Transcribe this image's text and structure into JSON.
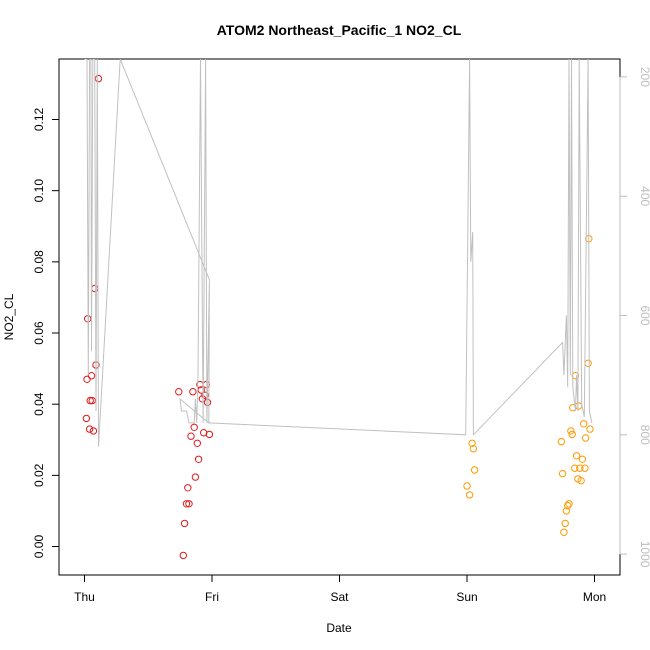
{
  "chart_data": {
    "type": "scatter",
    "title": "ATOM2 Northeast_Pacific_1 NO2_CL",
    "xlabel": "Date",
    "ylabel": "NO2_CL",
    "x_unit": "days since Thu 00:00",
    "xlim": [
      -0.2,
      4.2
    ],
    "ylim": [
      -0.008,
      0.137
    ],
    "x_ticks": [
      {
        "x": 0,
        "label": "Thu"
      },
      {
        "x": 1,
        "label": "Fri"
      },
      {
        "x": 2,
        "label": "Sat"
      },
      {
        "x": 3,
        "label": "Sun"
      },
      {
        "x": 4,
        "label": "Mon"
      }
    ],
    "y_ticks": [
      {
        "v": 0.0,
        "label": "0.00"
      },
      {
        "v": 0.02,
        "label": "0.02"
      },
      {
        "v": 0.04,
        "label": "0.04"
      },
      {
        "v": 0.06,
        "label": "0.06"
      },
      {
        "v": 0.08,
        "label": "0.08"
      },
      {
        "v": 0.1,
        "label": "0.10"
      },
      {
        "v": 0.12,
        "label": "0.12"
      }
    ],
    "right_axis": {
      "color": "#bdbdbd",
      "ylim_top_to_bottom": [
        170,
        1035
      ],
      "ticks": [
        {
          "v": 200,
          "label": "200"
        },
        {
          "v": 400,
          "label": "400"
        },
        {
          "v": 600,
          "label": "600"
        },
        {
          "v": 800,
          "label": "800"
        },
        {
          "v": 1000,
          "label": "1000"
        }
      ]
    },
    "grid": false,
    "series": [
      {
        "color": "#e31a1c",
        "points": [
          [
            0.015,
            0.036
          ],
          [
            0.02,
            0.047
          ],
          [
            0.025,
            0.064
          ],
          [
            0.04,
            0.033
          ],
          [
            0.045,
            0.041
          ],
          [
            0.055,
            0.048
          ],
          [
            0.06,
            0.041
          ],
          [
            0.07,
            0.0325
          ],
          [
            0.08,
            0.0725
          ],
          [
            0.09,
            0.051
          ],
          [
            0.11,
            0.1315
          ],
          [
            0.74,
            0.0435
          ],
          [
            0.775,
            -0.0025
          ],
          [
            0.785,
            0.0065
          ],
          [
            0.8,
            0.012
          ],
          [
            0.81,
            0.0165
          ],
          [
            0.82,
            0.012
          ],
          [
            0.835,
            0.031
          ],
          [
            0.85,
            0.0435
          ],
          [
            0.86,
            0.0335
          ],
          [
            0.87,
            0.0195
          ],
          [
            0.885,
            0.029
          ],
          [
            0.895,
            0.0245
          ],
          [
            0.905,
            0.0455
          ],
          [
            0.915,
            0.044
          ],
          [
            0.925,
            0.0415
          ],
          [
            0.935,
            0.032
          ],
          [
            0.945,
            0.0425
          ],
          [
            0.955,
            0.0455
          ],
          [
            0.965,
            0.0405
          ],
          [
            0.98,
            0.0315
          ]
        ]
      },
      {
        "color": "#ff9900",
        "points": [
          [
            3.0,
            0.017
          ],
          [
            3.02,
            0.0145
          ],
          [
            3.04,
            0.029
          ],
          [
            3.05,
            0.0275
          ],
          [
            3.06,
            0.0215
          ],
          [
            3.74,
            0.0295
          ],
          [
            3.75,
            0.0205
          ],
          [
            3.76,
            0.004
          ],
          [
            3.77,
            0.0065
          ],
          [
            3.78,
            0.01
          ],
          [
            3.79,
            0.0115
          ],
          [
            3.8,
            0.012
          ],
          [
            3.815,
            0.0325
          ],
          [
            3.825,
            0.0315
          ],
          [
            3.83,
            0.039
          ],
          [
            3.845,
            0.022
          ],
          [
            3.85,
            0.048
          ],
          [
            3.86,
            0.0255
          ],
          [
            3.87,
            0.019
          ],
          [
            3.875,
            0.0395
          ],
          [
            3.885,
            0.022
          ],
          [
            3.895,
            0.0185
          ],
          [
            3.905,
            0.0245
          ],
          [
            3.915,
            0.0345
          ],
          [
            3.925,
            0.022
          ],
          [
            3.93,
            0.0305
          ],
          [
            3.95,
            0.0515
          ],
          [
            3.955,
            0.0865
          ],
          [
            3.965,
            0.033
          ]
        ]
      },
      {
        "name": "",
        "axis": "right",
        "color": "#c0c0c0",
        "kind": "line",
        "points": [
          [
            0.0,
            170
          ],
          [
            0.02,
            170
          ],
          [
            0.03,
            700
          ],
          [
            0.04,
            170
          ],
          [
            0.05,
            170
          ],
          [
            0.055,
            660
          ],
          [
            0.065,
            170
          ],
          [
            0.08,
            170
          ],
          [
            0.09,
            760
          ],
          [
            0.1,
            170
          ],
          [
            0.11,
            820
          ],
          [
            0.28,
            170
          ],
          [
            0.98,
            540
          ],
          [
            0.975,
            780
          ],
          [
            0.75,
            740
          ],
          [
            0.76,
            760
          ],
          [
            0.8,
            760
          ],
          [
            0.82,
            780
          ],
          [
            0.86,
            780
          ],
          [
            0.87,
            740
          ],
          [
            0.88,
            780
          ],
          [
            0.89,
            700
          ],
          [
            0.91,
            170
          ],
          [
            0.93,
            780
          ],
          [
            0.95,
            170
          ],
          [
            0.96,
            780
          ],
          [
            0.98,
            540
          ],
          [
            0.975,
            780
          ],
          [
            2.99,
            800
          ],
          [
            3.02,
            170
          ],
          [
            3.03,
            510
          ],
          [
            3.045,
            460
          ],
          [
            3.05,
            800
          ],
          [
            3.75,
            645
          ],
          [
            3.76,
            700
          ],
          [
            3.78,
            600
          ],
          [
            3.79,
            720
          ],
          [
            3.8,
            170
          ],
          [
            3.81,
            700
          ],
          [
            3.82,
            170
          ],
          [
            3.83,
            720
          ],
          [
            3.84,
            740
          ],
          [
            3.85,
            760
          ],
          [
            3.86,
            700
          ],
          [
            3.87,
            760
          ],
          [
            3.88,
            170
          ],
          [
            3.9,
            750
          ],
          [
            3.92,
            770
          ],
          [
            3.95,
            170
          ],
          [
            3.96,
            760
          ],
          [
            3.98,
            780
          ]
        ]
      }
    ]
  }
}
